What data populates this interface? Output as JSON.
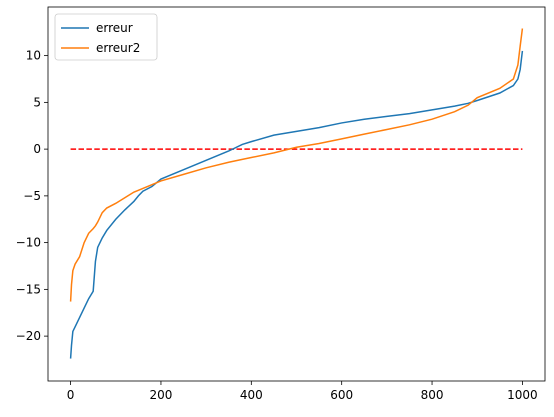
{
  "chart_data": {
    "type": "line",
    "x": [
      0,
      2,
      5,
      10,
      20,
      30,
      40,
      50,
      55,
      60,
      70,
      80,
      100,
      120,
      140,
      150,
      160,
      180,
      200,
      250,
      300,
      350,
      380,
      400,
      450,
      500,
      550,
      600,
      650,
      700,
      750,
      800,
      850,
      880,
      900,
      950,
      980,
      990,
      995,
      1000
    ],
    "series": [
      {
        "name": "erreur",
        "color": "#1f77b4",
        "values": [
          -22.4,
          -21,
          -19.5,
          -19,
          -18,
          -17,
          -16,
          -15.2,
          -12,
          -10.5,
          -9.5,
          -8.7,
          -7.5,
          -6.5,
          -5.6,
          -5,
          -4.5,
          -4,
          -3.2,
          -2.2,
          -1.2,
          -0.2,
          0.5,
          0.8,
          1.5,
          1.9,
          2.3,
          2.8,
          3.2,
          3.5,
          3.8,
          4.2,
          4.6,
          4.9,
          5.2,
          6.0,
          6.8,
          7.5,
          8.5,
          10.5
        ]
      },
      {
        "name": "erreur2",
        "color": "#ff7f0e",
        "values": [
          -16.3,
          -14.5,
          -13,
          -12.3,
          -11.5,
          -10,
          -9,
          -8.5,
          -8.2,
          -7.8,
          -6.8,
          -6.3,
          -5.8,
          -5.2,
          -4.6,
          -4.4,
          -4.2,
          -3.8,
          -3.4,
          -2.7,
          -2,
          -1.4,
          -1.1,
          -0.9,
          -0.4,
          0.2,
          0.6,
          1.1,
          1.6,
          2.1,
          2.6,
          3.2,
          4.0,
          4.7,
          5.5,
          6.5,
          7.5,
          9,
          11,
          12.9
        ]
      }
    ],
    "reference_line": {
      "x": [
        0,
        1000
      ],
      "y": 0,
      "color": "#ff0000",
      "dashed": true
    },
    "xlim": [
      -50,
      1050
    ],
    "ylim": [
      -24.8,
      15.2
    ],
    "xticks": [
      0,
      200,
      400,
      600,
      800,
      1000
    ],
    "yticks": [
      {
        "value": -20,
        "label": "−20"
      },
      {
        "value": -15,
        "label": "−15"
      },
      {
        "value": -10,
        "label": "−10"
      },
      {
        "value": -5,
        "label": "−5"
      },
      0,
      5,
      10
    ],
    "legend": "upper left"
  }
}
